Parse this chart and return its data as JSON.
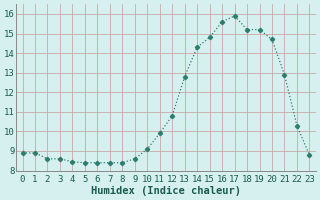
{
  "x": [
    0,
    1,
    2,
    3,
    4,
    5,
    6,
    7,
    8,
    9,
    10,
    11,
    12,
    13,
    14,
    15,
    16,
    17,
    18,
    19,
    20,
    21,
    22,
    23
  ],
  "y": [
    8.9,
    8.9,
    8.6,
    8.6,
    8.45,
    8.4,
    8.4,
    8.4,
    8.4,
    8.6,
    9.1,
    9.9,
    10.8,
    12.8,
    14.3,
    14.8,
    15.6,
    15.9,
    15.2,
    15.2,
    14.7,
    12.9,
    10.3,
    8.8
  ],
  "line_color": "#2e7d6e",
  "marker": "D",
  "marker_size": 2.2,
  "line_width": 0.9,
  "xlabel": "Humidex (Indice chaleur)",
  "xlabel_fontsize": 7.5,
  "xlabel_fontweight": "bold",
  "ylabel_ticks": [
    8,
    9,
    10,
    11,
    12,
    13,
    14,
    15,
    16
  ],
  "xlim": [
    -0.5,
    23.5
  ],
  "ylim": [
    8,
    16.5
  ],
  "background_color": "#d6f0f0",
  "grid_color": "#c8a8a8",
  "tick_fontsize": 6.5,
  "xtick_labels": [
    "0",
    "1",
    "2",
    "3",
    "4",
    "5",
    "6",
    "7",
    "8",
    "9",
    "10",
    "11",
    "12",
    "13",
    "14",
    "15",
    "16",
    "17",
    "18",
    "19",
    "20",
    "21",
    "22",
    "23"
  ]
}
